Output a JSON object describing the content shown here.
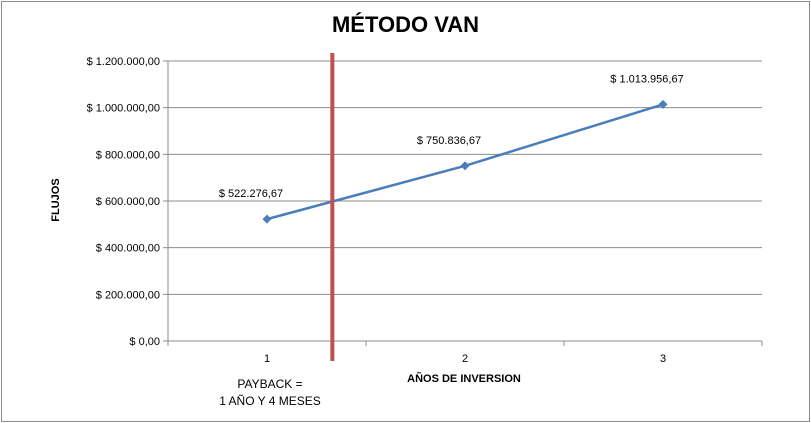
{
  "chart_data": {
    "type": "line",
    "title": "MÉTODO VAN",
    "xlabel": "AÑOS DE INVERSION",
    "ylabel": "FLUJOS",
    "categories": [
      "1",
      "2",
      "3"
    ],
    "series": [
      {
        "values": [
          522276.67,
          750836.67,
          1013956.67
        ],
        "data_labels": [
          "$ 522.276,67",
          "$ 750.836,67",
          "$ 1.013.956,67"
        ],
        "color": "#4a7ebb"
      }
    ],
    "ylim": [
      0,
      1200000
    ],
    "yticks": [
      0,
      200000,
      400000,
      600000,
      800000,
      1000000,
      1200000
    ],
    "ytick_labels": [
      "$ 0,00",
      "$ 200.000,00",
      "$ 400.000,00",
      "$ 600.000,00",
      "$ 800.000,00",
      "$ 1.000.000,00",
      "$ 1.200.000,00"
    ],
    "grid": true,
    "legend": "none",
    "payback_line": {
      "x": 1.33,
      "color": "#c0504d"
    },
    "annotation": [
      "PAYBACK =",
      "1 AÑO Y 4 MESES"
    ]
  }
}
